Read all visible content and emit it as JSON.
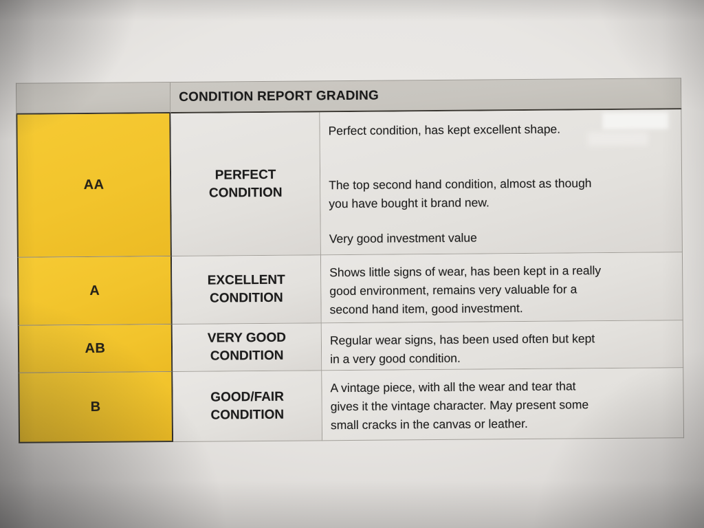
{
  "table": {
    "title": "CONDITION REPORT GRADING",
    "rows": [
      {
        "grade": "AA",
        "label": "PERFECT\nCONDITION",
        "paragraphs": [
          "Perfect condition, has kept excellent shape.",
          "The top second hand condition, almost as though\nyou have bought it brand new.",
          "Very good investment value"
        ]
      },
      {
        "grade": "A",
        "label": "EXCELLENT\nCONDITION",
        "paragraphs": [
          "Shows little signs of wear, has been kept in a really\ngood environment, remains very valuable for a\nsecond hand item, good investment."
        ]
      },
      {
        "grade": "AB",
        "label": "VERY GOOD\nCONDITION",
        "paragraphs": [
          "Regular wear signs, has been used often but kept\nin a very good condition."
        ]
      },
      {
        "grade": "B",
        "label": "GOOD/FAIR\nCONDITION",
        "paragraphs": [
          "A vintage piece, with all the wear and tear that\ngives it the vintage character. May present some\nsmall cracks in the canvas or leather."
        ]
      }
    ],
    "colors": {
      "grade_cell": "#f2c42c",
      "header_band": "#c8c5bf",
      "cell_bg": "#e3e1dd",
      "text": "#1d1d1d",
      "line": "#a19e98"
    }
  }
}
